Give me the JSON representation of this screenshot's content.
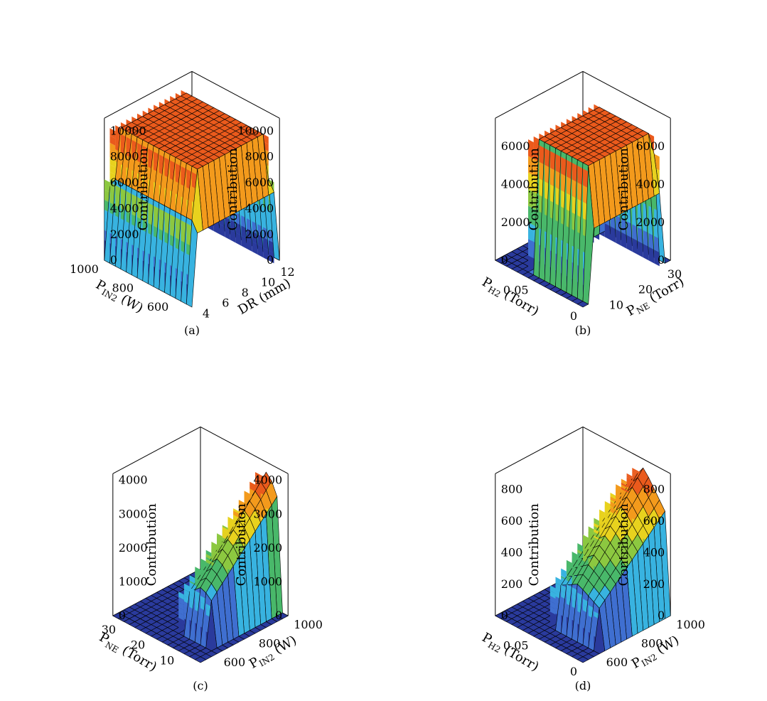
{
  "figure": {
    "panels": [
      {
        "id": "a",
        "caption": "(a)",
        "zlabel": "Contribution",
        "x_axis": {
          "name": "P",
          "sub": "IN2",
          "unit": " (W)",
          "ticks": [
            "600",
            "800",
            "1000"
          ],
          "range": [
            500,
            1000
          ]
        },
        "y_axis": {
          "name": "DR (mm)",
          "sub": "",
          "unit": "",
          "ticks": [
            "4",
            "6",
            "8",
            "10",
            "12"
          ],
          "range": [
            3.5,
            12.5
          ]
        },
        "z_ticks": [
          "0",
          "2000",
          "4000",
          "6000",
          "8000",
          "10000"
        ],
        "z_range": [
          0,
          11000
        ]
      },
      {
        "id": "b",
        "caption": "(b)",
        "zlabel": "Contribution",
        "x_axis": {
          "name": "P",
          "sub": "H2",
          "unit": " (Torr)",
          "ticks": [
            "0",
            "0.05"
          ],
          "range": [
            0,
            0.09
          ]
        },
        "y_axis": {
          "name": "P",
          "sub": "NE",
          "unit": " (Torr)",
          "ticks": [
            "10",
            "20",
            "30"
          ],
          "range": [
            3,
            33
          ]
        },
        "z_ticks": [
          "0",
          "2000",
          "4000",
          "6000"
        ],
        "z_range": [
          0,
          7500
        ]
      },
      {
        "id": "c",
        "caption": "(c)",
        "zlabel": "Contribution",
        "x_axis": {
          "name": "P",
          "sub": "NE",
          "unit": " (Torr)",
          "ticks": [
            "10",
            "20",
            "30"
          ],
          "range": [
            3,
            33
          ]
        },
        "y_axis": {
          "name": "P",
          "sub": "IN2",
          "unit": " (W)",
          "ticks": [
            "600",
            "800",
            "1000"
          ],
          "range": [
            500,
            1000
          ]
        },
        "z_ticks": [
          "0",
          "1000",
          "2000",
          "3000",
          "4000"
        ],
        "z_range": [
          0,
          4200
        ]
      },
      {
        "id": "d",
        "caption": "(d)",
        "zlabel": "Contribution",
        "x_axis": {
          "name": "P",
          "sub": "H2",
          "unit": " (Torr)",
          "ticks": [
            "0",
            "0.05"
          ],
          "range": [
            0,
            0.09
          ]
        },
        "y_axis": {
          "name": "P",
          "sub": "IN2",
          "unit": " (W)",
          "ticks": [
            "600",
            "800",
            "1000"
          ],
          "range": [
            500,
            1000
          ]
        },
        "z_ticks": [
          "0",
          "200",
          "400",
          "600",
          "800"
        ],
        "z_range": [
          0,
          900
        ]
      }
    ]
  },
  "chart_data": [
    {
      "type": "surface3d",
      "panel": "a",
      "x": "P_IN2 (W)",
      "y": "DR (mm)",
      "z": "Contribution",
      "surface": {
        "shape": "plateau",
        "x_from": 500,
        "x_to": 1000,
        "y_from": 4,
        "y_to": 12,
        "z_peak": 10000
      },
      "colormap": [
        "#2a3a9c",
        "#3f6fd0",
        "#38b3e0",
        "#49b86a",
        "#8cc840",
        "#e8d21e",
        "#f39a1c",
        "#ea5a1c"
      ]
    },
    {
      "type": "surface3d",
      "panel": "b",
      "x": "P_H2 (Torr)",
      "y": "P_NE (Torr)",
      "z": "Contribution",
      "surface": {
        "shape": "plateau",
        "x_from": 0,
        "x_to": 0.06,
        "y_from": 5,
        "y_to": 30,
        "z_peak": 7000
      },
      "colormap": [
        "#2a3a9c",
        "#3f6fd0",
        "#38b3e0",
        "#49b86a",
        "#8cc840",
        "#e8d21e",
        "#f39a1c",
        "#ea5a1c"
      ]
    },
    {
      "type": "surface3d",
      "panel": "c",
      "x": "P_NE (Torr)",
      "y": "P_IN2 (W)",
      "z": "Contribution",
      "surface": {
        "shape": "ridge",
        "x_from": 5,
        "x_to": 15,
        "y_from": 600,
        "y_to": 1000,
        "z_peak": 4000
      },
      "colormap": [
        "#2a3a9c",
        "#3f6fd0",
        "#38b3e0",
        "#49b86a",
        "#8cc840",
        "#e8d21e",
        "#f39a1c",
        "#ea5a1c"
      ]
    },
    {
      "type": "surface3d",
      "panel": "d",
      "x": "P_H2 (Torr)",
      "y": "P_IN2 (W)",
      "z": "Contribution",
      "surface": {
        "shape": "ridge",
        "x_from": 0.005,
        "x_to": 0.05,
        "y_from": 600,
        "y_to": 1000,
        "z_peak": 850
      },
      "colormap": [
        "#2a3a9c",
        "#3f6fd0",
        "#38b3e0",
        "#49b86a",
        "#8cc840",
        "#e8d21e",
        "#f39a1c",
        "#ea5a1c"
      ]
    }
  ]
}
